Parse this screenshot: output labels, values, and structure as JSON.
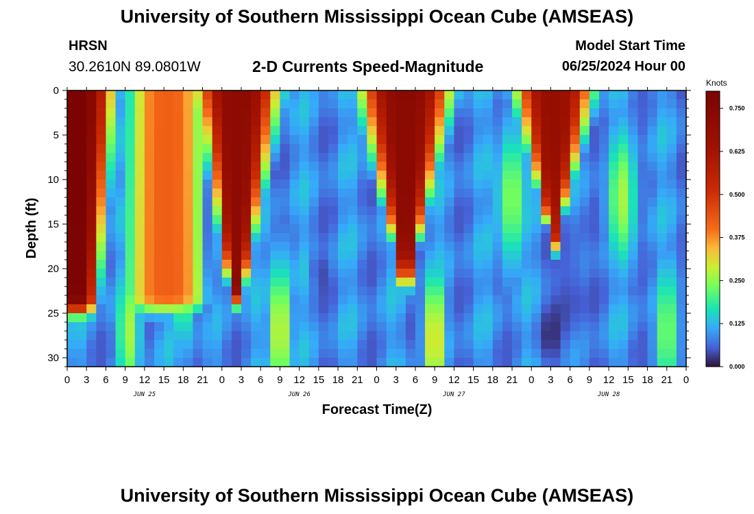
{
  "header": {
    "title": "University of Southern Mississippi Ocean Cube (AMSEAS)",
    "footer_title": "University of Southern Mississippi Ocean Cube (AMSEAS)",
    "station_code": "HRSN",
    "station_coords": "30.2610N  89.0801W",
    "plot_title": "2-D Currents Speed-Magnitude",
    "model_label": "Model Start Time",
    "model_start": "06/25/2024 Hour 00"
  },
  "chart_data": {
    "type": "heatmap",
    "title": "2-D Currents Speed-Magnitude",
    "xlabel": "Forecast Time(Z)",
    "ylabel": "Depth (ft)",
    "x_range_hours": [
      0,
      96
    ],
    "y_range_ft": [
      0,
      31
    ],
    "x_tick_labels": [
      "0",
      "3",
      "6",
      "9",
      "12",
      "15",
      "18",
      "21",
      "0",
      "3",
      "6",
      "9",
      "12",
      "15",
      "18",
      "21",
      "0",
      "3",
      "6",
      "9",
      "12",
      "15",
      "18",
      "21",
      "0",
      "3",
      "6",
      "9",
      "12",
      "15",
      "18",
      "21",
      "0"
    ],
    "y_tick_labels": [
      "0",
      "5",
      "10",
      "15",
      "20",
      "25",
      "30"
    ],
    "y_tick_values": [
      0,
      5,
      10,
      15,
      20,
      25,
      30
    ],
    "day_labels": [
      "JUN 25",
      "JUN 26",
      "JUN 27",
      "JUN 28"
    ],
    "colorbar": {
      "unit": "Knots",
      "range": [
        0,
        0.8
      ],
      "tick_labels": [
        "0.000",
        "0.125",
        "0.250",
        "0.375",
        "0.500",
        "0.625",
        "0.750"
      ],
      "tick_values": [
        0,
        0.125,
        0.25,
        0.375,
        0.5,
        0.625,
        0.75
      ]
    },
    "features": [
      {
        "center_hour": 1.5,
        "halfwidth_top": 5.5,
        "halfwidth_bottom": 3.0,
        "bottom_ft": 23,
        "peak": 0.8
      },
      {
        "center_hour": 15.5,
        "halfwidth_top": 6.0,
        "halfwidth_bottom": 6.5,
        "bottom_ft": 23,
        "peak": 0.42
      },
      {
        "center_hour": 2.3,
        "halfwidth_top": 6.5,
        "halfwidth_bottom": 1.2,
        "bottom_ft": 22,
        "peak": 0.72,
        "day": 1
      },
      {
        "center_hour": 4.5,
        "halfwidth_top": 7.0,
        "halfwidth_bottom": 1.0,
        "bottom_ft": 20,
        "peak": 0.73,
        "day": 2
      },
      {
        "center_hour": 3.5,
        "halfwidth_top": 6.0,
        "halfwidth_bottom": 0.8,
        "bottom_ft": 16,
        "peak": 0.68,
        "day": 3
      }
    ]
  }
}
